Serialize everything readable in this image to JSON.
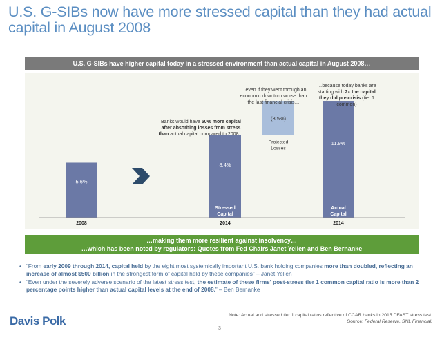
{
  "title": "U.S. G-SIBs now have more stressed capital than they had actual capital in August 2008",
  "banner_top": "U.S. G-SIBs have higher capital today in a stressed environment than actual capital in August 2008…",
  "chart_data": {
    "type": "bar",
    "ylim": [
      0,
      14
    ],
    "bars": [
      {
        "id": "2008",
        "category": "2008",
        "value": 5.6,
        "label": "5.6%",
        "bar_name": "",
        "kind": "solid"
      },
      {
        "id": "stressed",
        "category": "2014",
        "value": 8.4,
        "label": "8.4%",
        "bar_name": "Stressed Capital",
        "kind": "solid"
      },
      {
        "id": "projected",
        "category": "",
        "value": 3.5,
        "from": 8.4,
        "to": 11.9,
        "label": "(3.5%)",
        "bar_name": "Projected Losses",
        "kind": "floating"
      },
      {
        "id": "actual",
        "category": "2014",
        "value": 11.9,
        "label": "11.9%",
        "bar_name": "Actual Capital",
        "kind": "solid"
      }
    ],
    "colors": {
      "solid": "#6b79a6",
      "floating": "#a9bedb"
    }
  },
  "annotations": {
    "stressed_pre": "Banks would have ",
    "stressed_bold": "50% more capital after absorbing losses from stress than",
    "stressed_post": " actual capital compared to 2008…",
    "losses": "…even if they went through an economic downturn worse than the last financial crisis…",
    "actual_pre": "…because today banks are starting with ",
    "actual_bold": "2x the capital they did pre-crisis",
    "actual_post": " (tier 1 common)"
  },
  "banner_green": {
    "line1": "…making them more resilient against insolvency…",
    "line2": "…which has been noted by regulators: Quotes from Fed Chairs Janet Yellen and Ben Bernanke"
  },
  "bullets": {
    "b1_a": "“From ",
    "b1_bold1": "early 2009 through 2014, capital held",
    "b1_b": " by the eight most systemically important U.S. bank holding companies ",
    "b1_bold2": "more than doubled, reflecting an increase of almost $500 billion",
    "b1_c": " in the strongest form of capital held by these companies” – Janet Yellen",
    "b2_a": "“Even under the severely adverse scenario of the latest stress test, ",
    "b2_bold": "the estimate of these firms' post-stress tier 1 common capital ratio is more than 2 percentage points higher than actual capital levels at the end of 2008.",
    "b2_b": "” – Ben Bernanke"
  },
  "logo": "Davis Polk",
  "note_line1": "Note: Actual and stressed tier 1 capital ratios reflective of CCAR banks in 2015 DFAST stress test.",
  "note_source_label": "Source: ",
  "note_source": "Federal Reserve, SNL Financial.",
  "page_number": "3"
}
